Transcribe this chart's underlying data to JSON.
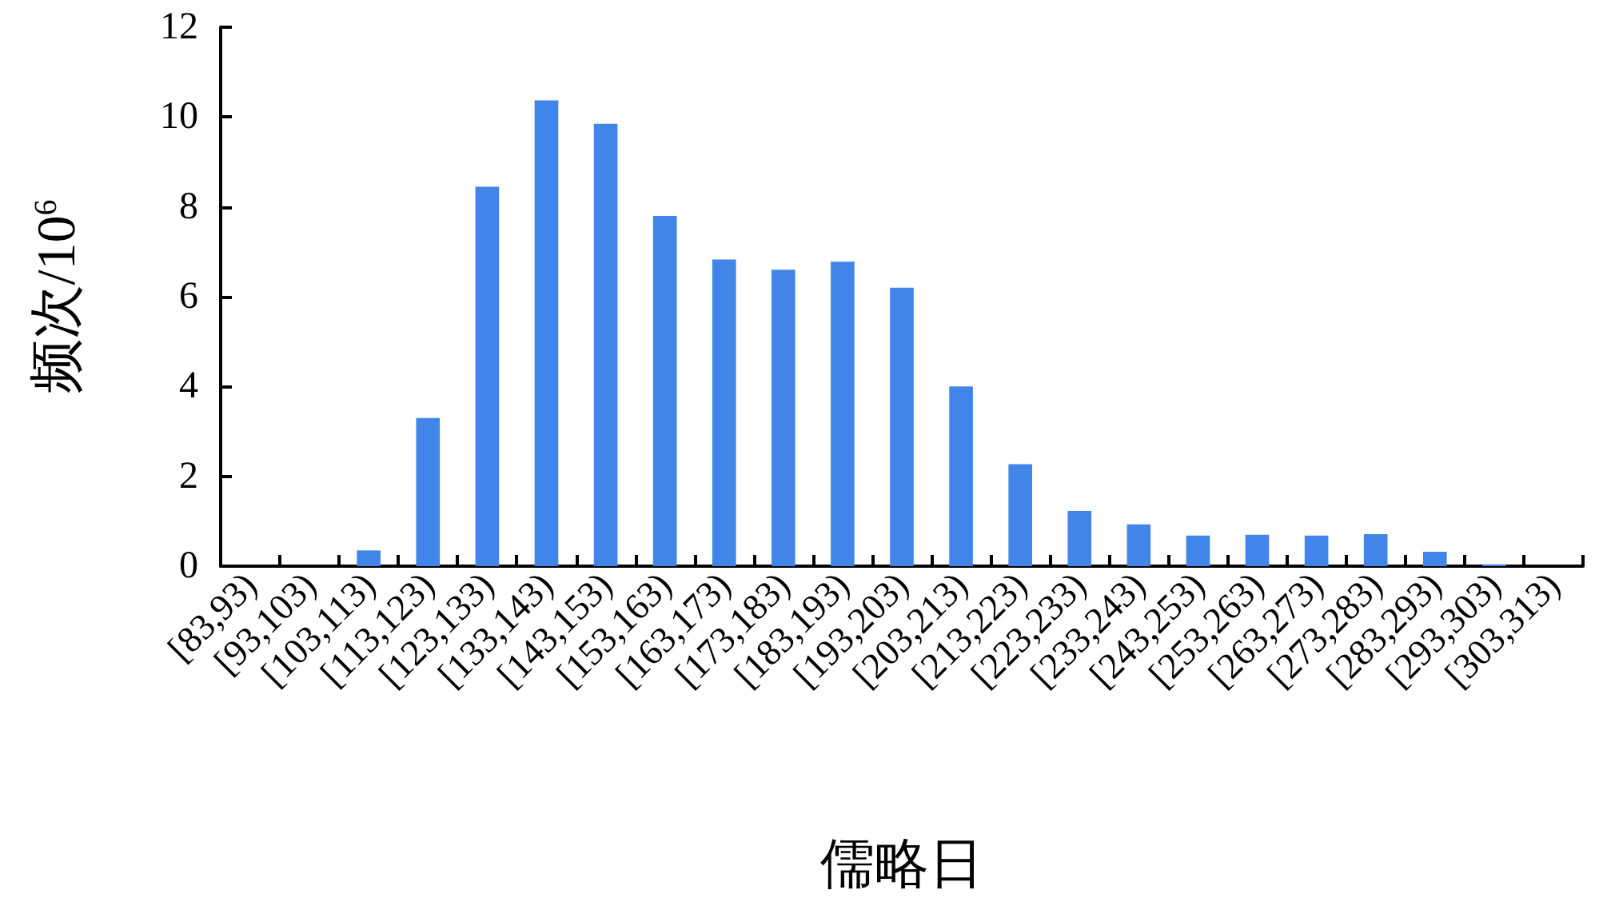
{
  "chart_data": {
    "type": "bar",
    "xlabel": "儒略日",
    "ylabel": "频次/10$^{6}$",
    "categories": [
      "[83,93)",
      "[93,103)",
      "[103,113)",
      "[113,123)",
      "[123,133)",
      "[133,143)",
      "[143,153)",
      "[153,163)",
      "[163,173)",
      "[173,183)",
      "[183,193)",
      "[193,203)",
      "[203,213)",
      "[213,223)",
      "[223,233)",
      "[233,243)",
      "[243,253)",
      "[253,263)",
      "[263,273)",
      "[273,283)",
      "[283,293)",
      "[293,303)",
      "[303,313)"
    ],
    "values": [
      0,
      0,
      0.35,
      3.3,
      8.45,
      10.37,
      9.85,
      7.8,
      6.83,
      6.6,
      6.78,
      6.2,
      4.0,
      2.27,
      1.23,
      0.93,
      0.68,
      0.7,
      0.68,
      0.71,
      0.32,
      0.04,
      0
    ],
    "color": "#4285e8",
    "ylim": [
      0,
      12
    ],
    "yticks": [
      0,
      2,
      4,
      6,
      8,
      10,
      12
    ]
  }
}
